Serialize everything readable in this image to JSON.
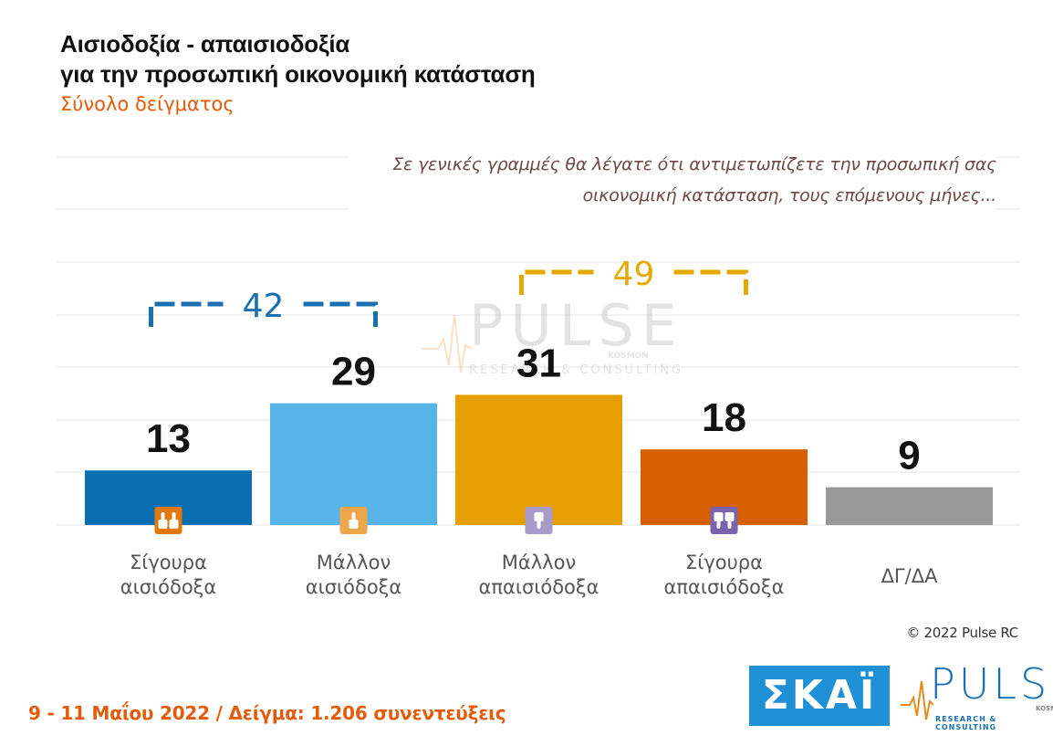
{
  "header": {
    "title_line1": "Αισιοδοξία - απαισιοδοξία",
    "title_line2": "για την προσωπική οικονομική κατάσταση",
    "subtitle": "Σύνολο δείγματος"
  },
  "question": {
    "line1": "Σε γενικές γραμμές θα λέγατε ότι αντιμετωπίζετε την προσωπική σας",
    "line2": "οικονομική κατάσταση, τους επόμενους μήνες..."
  },
  "chart_data": {
    "type": "bar",
    "categories": [
      [
        "Σίγουρα",
        "αισιόδοξα"
      ],
      [
        "Μάλλον",
        "αισιόδοξα"
      ],
      [
        "Μάλλον",
        "απαισιόδοξα"
      ],
      [
        "Σίγουρα",
        "απαισιόδοξα"
      ],
      [
        "ΔΓ/ΔΑ"
      ]
    ],
    "values": [
      13,
      29,
      31,
      18,
      9
    ],
    "colors": [
      "#0a6fb0",
      "#57b4e9",
      "#e5a000",
      "#d85f00",
      "#999999"
    ],
    "icons": [
      "double-thumbs-up-icon",
      "thumbs-up-icon",
      "thumbs-down-icon",
      "double-thumbs-down-icon",
      null
    ],
    "icon_colors": [
      "#e0780d",
      "#eda64a",
      "#a89bc9",
      "#7a64ad",
      null
    ],
    "groups": [
      {
        "value": "42",
        "bars": [
          0,
          1
        ],
        "color": "#1a6fb0"
      },
      {
        "value": "49",
        "bars": [
          2,
          3
        ],
        "color": "#e5a800"
      }
    ],
    "ylim": [
      0,
      50
    ],
    "grid": true
  },
  "watermark": {
    "word": "PULSE",
    "sub": "RESEARCH & CONSULTING",
    "tag": "KOSMON"
  },
  "copyright": "© 2022 Pulse RC",
  "footer": "9 - 11 Μαΐου 2022 / Δείγμα: 1.206 συνεντεύξεις",
  "logos": {
    "skai": "ΣΚΑΪ",
    "pulse": "PULSE",
    "pulse_sub": "RESEARCH & CONSULTING",
    "pulse_tag": "KOSMON",
    "skai_color": "#1f8fd6",
    "pulse_color": "#1a6fb0"
  }
}
